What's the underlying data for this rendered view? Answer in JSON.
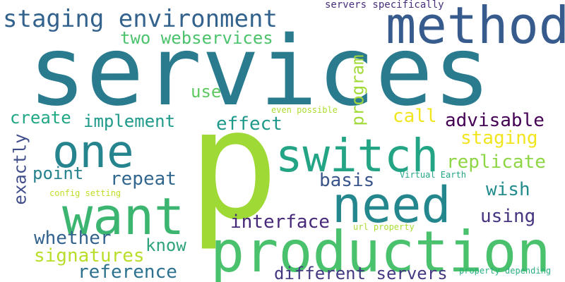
{
  "words": [
    {
      "text": "services",
      "color": "#2a7b8e",
      "vertical": false
    },
    {
      "text": "p",
      "color": "#9fd935",
      "vertical": false
    },
    {
      "text": "production",
      "color": "#4ac16d",
      "vertical": false
    },
    {
      "text": "method",
      "color": "#375b8d",
      "vertical": false
    },
    {
      "text": "want",
      "color": "#3bb56f",
      "vertical": false
    },
    {
      "text": "need",
      "color": "#24878e",
      "vertical": false
    },
    {
      "text": "switch",
      "color": "#23a484",
      "vertical": false
    },
    {
      "text": "one",
      "color": "#25848e",
      "vertical": false
    },
    {
      "text": "staging environment",
      "color": "#33638d",
      "vertical": false
    },
    {
      "text": "two webservices",
      "color": "#4cc26c",
      "vertical": false
    },
    {
      "text": "servers specifically",
      "color": "#472e7c",
      "vertical": false
    },
    {
      "text": "use",
      "color": "#5ec962",
      "vertical": false
    },
    {
      "text": "program",
      "color": "#a2da37",
      "vertical": true
    },
    {
      "text": "create",
      "color": "#22a785",
      "vertical": false
    },
    {
      "text": "implement",
      "color": "#1f9a8a",
      "vertical": false
    },
    {
      "text": "even possible",
      "color": "#addc30",
      "vertical": false
    },
    {
      "text": "call",
      "color": "#f1e51d",
      "vertical": false
    },
    {
      "text": "advisable",
      "color": "#440154",
      "vertical": false
    },
    {
      "text": "effect",
      "color": "#1f998a",
      "vertical": false
    },
    {
      "text": "staging",
      "color": "#f1e51d",
      "vertical": false
    },
    {
      "text": "replicate",
      "color": "#8ed645",
      "vertical": false
    },
    {
      "text": "exactly",
      "color": "#3e4c8a",
      "vertical": true
    },
    {
      "text": "point",
      "color": "#26818e",
      "vertical": false
    },
    {
      "text": "repeat",
      "color": "#31668e",
      "vertical": false
    },
    {
      "text": "basis",
      "color": "#39558c",
      "vertical": false
    },
    {
      "text": "Virtual Earth",
      "color": "#21a685",
      "vertical": false
    },
    {
      "text": "wish",
      "color": "#228b8d",
      "vertical": false
    },
    {
      "text": "config setting",
      "color": "#bddf26",
      "vertical": false
    },
    {
      "text": "interface",
      "color": "#482878",
      "vertical": false
    },
    {
      "text": "using",
      "color": "#463480",
      "vertical": false
    },
    {
      "text": "whether",
      "color": "#33638d",
      "vertical": false
    },
    {
      "text": "url property",
      "color": "#a8db34",
      "vertical": false
    },
    {
      "text": "know",
      "color": "#2ea37d",
      "vertical": false
    },
    {
      "text": "signatures",
      "color": "#b8de29",
      "vertical": false
    },
    {
      "text": "reference",
      "color": "#2c718e",
      "vertical": false
    },
    {
      "text": "different servers",
      "color": "#443983",
      "vertical": false
    },
    {
      "text": "property depending",
      "color": "#29af7f",
      "vertical": false
    }
  ]
}
